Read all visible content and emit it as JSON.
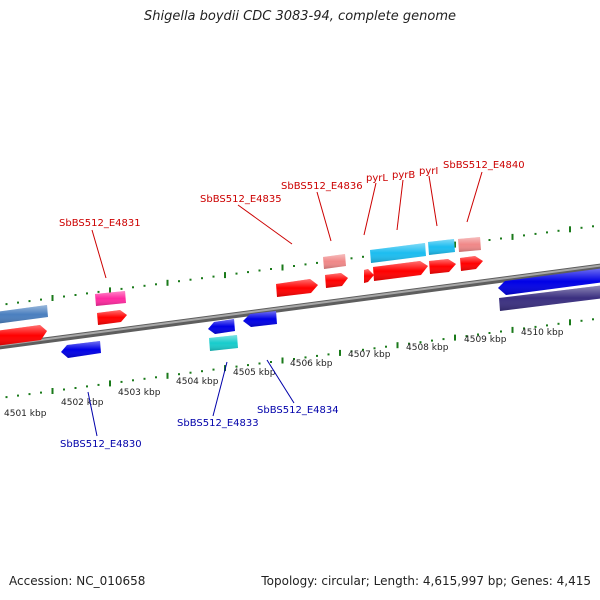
{
  "title": "Shigella boydii CDC 3083-94, complete genome",
  "footer": {
    "accession": "Accession: NC_010658",
    "summary": "Topology: circular; Length: 4,615,997 bp; Genes: 4,415"
  },
  "colors": {
    "forward_gene": "#ff0000",
    "reverse_gene": "#0000e6",
    "forward_label": "#cc0000",
    "reverse_label": "#0000aa",
    "tick": "#1a7a1a",
    "backbone": "#8a8a8a"
  },
  "ruler_upper": [
    "4507 kbp",
    "4508 kbp",
    "4509 kbp",
    "4510 kbp"
  ],
  "ruler_lower": [
    "4501 kbp",
    "4502 kbp",
    "4503 kbp",
    "4504 kbp",
    "4505 kbp",
    "4506 kbp"
  ],
  "forward_labels": [
    "SbBS512_E4831",
    "SbBS512_E4835",
    "SbBS512_E4836",
    "pyrL",
    "pyrB",
    "pyrI",
    "SbBS512_E4840"
  ],
  "reverse_labels": [
    "SbBS512_E4830",
    "SbBS512_E4833",
    "SbBS512_E4834"
  ]
}
